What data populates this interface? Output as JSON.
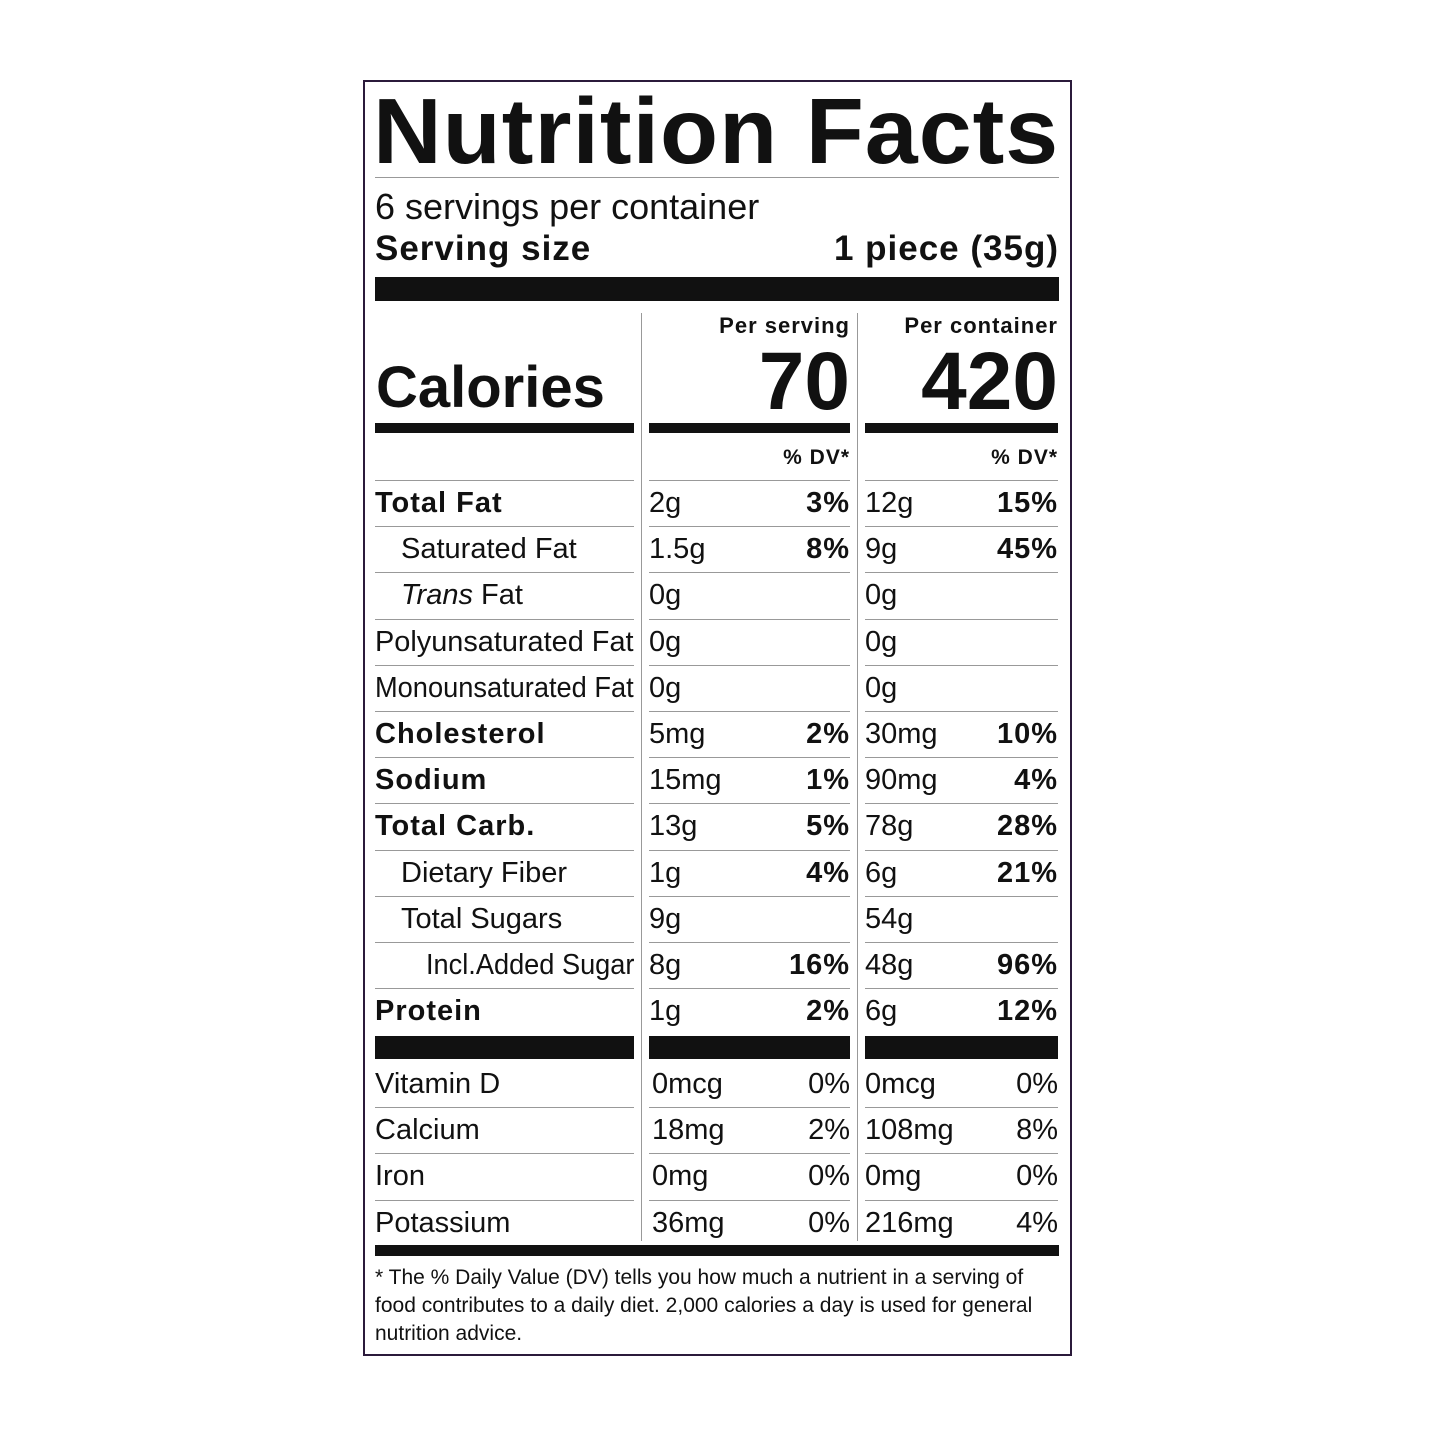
{
  "title": "Nutrition Facts",
  "servings_per_container": "6 servings per container",
  "serving_size": {
    "label": "Serving size",
    "value": "1 piece (35g)"
  },
  "calories": {
    "label": "Calories",
    "per_serving_header": "Per serving",
    "per_serving": "70",
    "per_container_header": "Per container",
    "per_container": "420"
  },
  "dv_headers": [
    "% DV*",
    "% DV*"
  ],
  "nutrients": [
    {
      "name": "Total Fat",
      "style": "bold",
      "serving": [
        "2g",
        "3%"
      ],
      "container": [
        "12g",
        "15%"
      ]
    },
    {
      "name": "Saturated Fat",
      "style": "indent",
      "serving": [
        "1.5g",
        "8%"
      ],
      "container": [
        "9g",
        "45%"
      ]
    },
    {
      "italic": "Trans",
      "name": "Fat",
      "style": "indent",
      "serving": [
        "0g"
      ],
      "container": [
        "0g"
      ]
    },
    {
      "name": "Polyunsaturated Fat",
      "style": "plain",
      "serving": [
        "0g"
      ],
      "container": [
        "0g"
      ]
    },
    {
      "name": "Monounsaturated Fat",
      "style": "plain",
      "serving": [
        "0g"
      ],
      "container": [
        "0g"
      ]
    },
    {
      "name": "Cholesterol",
      "style": "bold",
      "serving": [
        "5mg",
        "2%"
      ],
      "container": [
        "30mg",
        "10%"
      ]
    },
    {
      "name": "Sodium",
      "style": "bold",
      "serving": [
        "15mg",
        "1%"
      ],
      "container": [
        "90mg",
        "4%"
      ]
    },
    {
      "name": "Total Carb.",
      "style": "bold",
      "serving": [
        "13g",
        "5%"
      ],
      "container": [
        "78g",
        "28%"
      ]
    },
    {
      "name": "Dietary Fiber",
      "style": "indent",
      "serving": [
        "1g",
        "4%"
      ],
      "container": [
        "6g",
        "21%"
      ]
    },
    {
      "name": "Total Sugars",
      "style": "indent",
      "serving": [
        "9g"
      ],
      "container": [
        "54g"
      ]
    },
    {
      "name": "Incl.Added Sugar",
      "style": "indent2",
      "serving": [
        "8g",
        "16%"
      ],
      "container": [
        "48g",
        "96%"
      ]
    },
    {
      "name": "Protein",
      "style": "bold",
      "serving": [
        "1g",
        "2%"
      ],
      "container": [
        "6g",
        "12%"
      ]
    }
  ],
  "vitamins": [
    {
      "name": "Vitamin D",
      "serving": [
        "0mcg",
        "0%"
      ],
      "container": [
        "0mcg",
        "0%"
      ]
    },
    {
      "name": "Calcium",
      "serving": [
        "18mg",
        "2%"
      ],
      "container": [
        "108mg",
        "8%"
      ]
    },
    {
      "name": "Iron",
      "serving": [
        "0mg",
        "0%"
      ],
      "container": [
        "0mg",
        "0%"
      ]
    },
    {
      "name": "Potassium",
      "serving": [
        "36mg",
        "0%"
      ],
      "container": [
        "216mg",
        "4%"
      ]
    }
  ],
  "footnote": [
    "* The % Daily Value (DV) tells you how much a nutrient in a serving of",
    "food contributes to a daily diet. 2,000 calories a day is used for general",
    "nutrition advice."
  ]
}
